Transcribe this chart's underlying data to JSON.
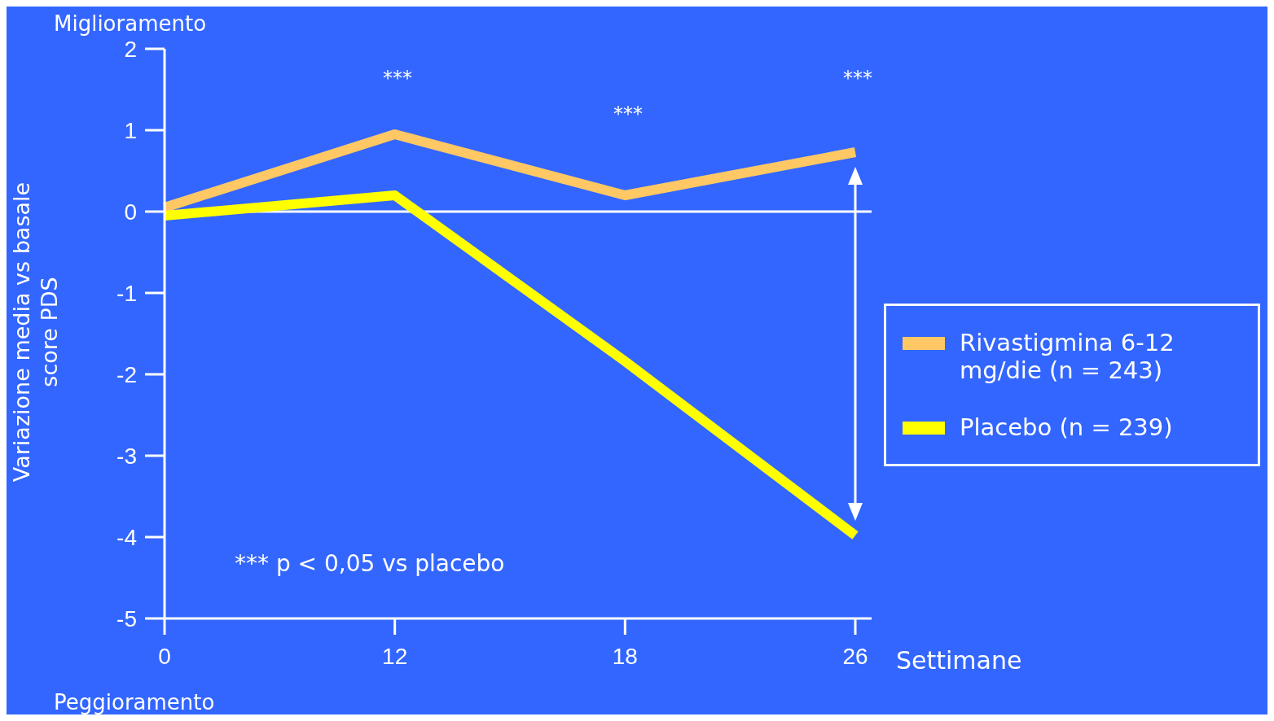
{
  "chart_data": {
    "type": "line",
    "xlabel": "Settimane",
    "ylabel": "Variazione media vs basale score PDS",
    "categories": [
      "0",
      "12",
      "18",
      "26"
    ],
    "series": [
      {
        "name": "Rivastigmina 6-12 mg/die (n = 243)",
        "color": "#ffc864",
        "values": [
          0.05,
          0.95,
          0.2,
          0.73
        ]
      },
      {
        "name": "Placebo (n = 239)",
        "color": "#ffff00",
        "values": [
          -0.05,
          0.2,
          -1.84,
          -3.98
        ]
      }
    ],
    "ylim": [
      -5,
      2
    ],
    "yticks": [
      -5,
      -4,
      -3,
      -2,
      -1,
      0,
      1,
      2
    ],
    "ref_lines": [
      {
        "axis": "y",
        "value": 0,
        "color": "#ffffff"
      }
    ],
    "annotations": [
      "Miglioramento",
      "Peggioramento",
      "*** p < 0,05 vs placebo",
      "***",
      "***",
      "***"
    ],
    "legend": "right",
    "grid": false,
    "marker": "none",
    "line_style": "solid"
  }
}
